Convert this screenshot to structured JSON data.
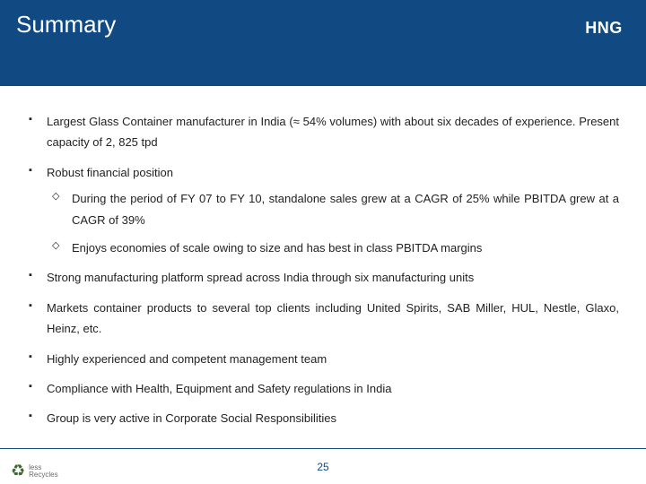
{
  "header": {
    "title": "Summary",
    "logo_text": "HNG",
    "background_color": "#114a82",
    "title_color": "#ffffff"
  },
  "bullets": [
    {
      "text": "Largest Glass Container manufacturer in India (≈ 54% volumes) with about six decades of experience.  Present capacity of 2, 825 tpd"
    },
    {
      "text": "Robust financial position",
      "sub": [
        {
          "text": "During the period of FY 07 to FY 10, standalone sales grew at a CAGR of 25% while PBITDA grew at a CAGR of 39%"
        },
        {
          "text": "Enjoys economies of scale owing to size and has best in class PBITDA margins"
        }
      ]
    },
    {
      "text": "Strong manufacturing platform spread across India through six manufacturing units"
    },
    {
      "text": "Markets container products to several top clients including United Spirits, SAB Miller, HUL, Nestle, Glaxo, Heinz, etc."
    },
    {
      "text": "Highly experienced and competent management team"
    },
    {
      "text": "Compliance with Health, Equipment and Safety regulations in India"
    },
    {
      "text": "Group is very active in Corporate Social Responsibilities"
    }
  ],
  "footer": {
    "page_number": "25",
    "recycle_label_line1": "less",
    "recycle_label_line2": "Recycles",
    "recycle_color": "#3a6b2a"
  }
}
